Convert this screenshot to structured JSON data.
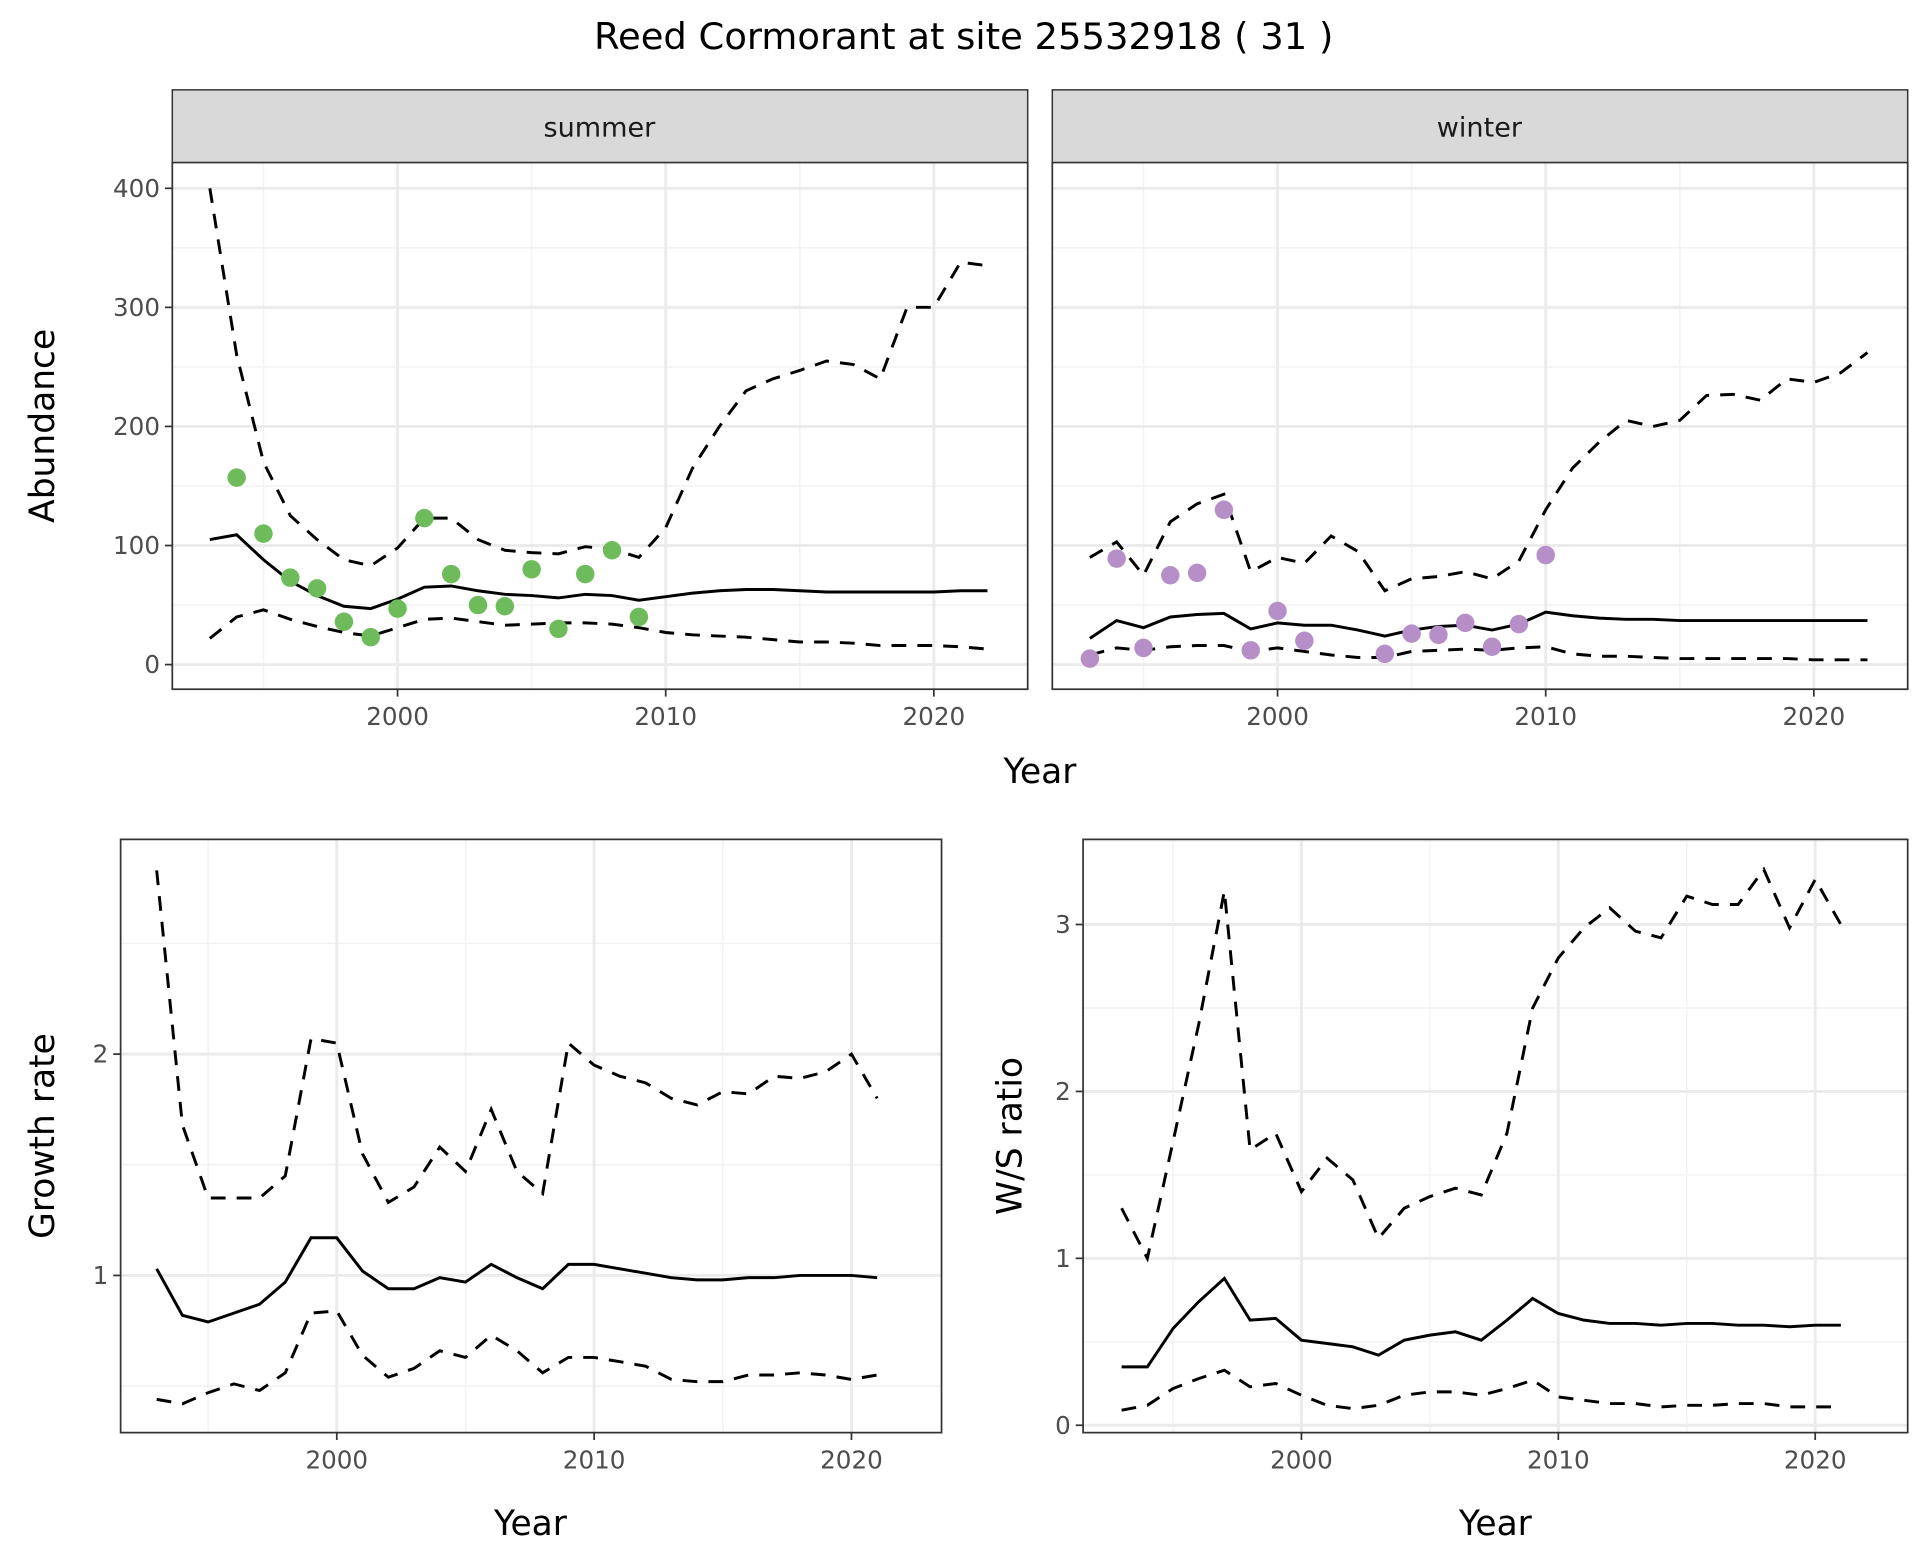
{
  "title": "Reed Cormorant at site 25532918 ( 31 )",
  "colors": {
    "summer": "#6dbb5a",
    "winter": "#b68fc8",
    "line": "#000000",
    "strip": "#d9d9d9",
    "grid": "#ebebeb"
  },
  "chart_data": [
    {
      "type": "line",
      "panel": "summer",
      "strip_label": "summer",
      "xlabel": "Year",
      "ylabel": "Abundance",
      "xlim": [
        1991.6,
        2023.5
      ],
      "ylim": [
        -20.7,
        421.7
      ],
      "xticks": [
        2000,
        2010,
        2020
      ],
      "yticks": [
        0,
        100,
        200,
        300,
        400
      ],
      "grid": true,
      "points": {
        "x": [
          1994,
          1995,
          1996,
          1997,
          1998,
          1999,
          2000,
          2001,
          2002,
          2003,
          2004,
          2005,
          2006,
          2007,
          2008,
          2009
        ],
        "y": [
          157,
          110,
          73,
          64,
          36,
          23,
          47,
          123,
          76,
          50,
          49,
          80,
          30,
          76,
          96,
          40
        ]
      },
      "years": [
        1993,
        1994,
        1995,
        1996,
        1997,
        1998,
        1999,
        2000,
        2001,
        2002,
        2003,
        2004,
        2005,
        2006,
        2007,
        2008,
        2009,
        2010,
        2011,
        2012,
        2013,
        2014,
        2015,
        2016,
        2017,
        2018,
        2019,
        2020,
        2021,
        2022
      ],
      "mean": [
        105,
        109,
        88,
        70,
        58,
        49,
        47,
        55,
        65,
        66,
        62,
        59,
        58,
        56,
        59,
        58,
        54,
        57,
        60,
        62,
        63,
        63,
        62,
        61,
        61,
        61,
        61,
        61,
        62,
        62
      ],
      "upper": [
        400,
        260,
        170,
        125,
        105,
        88,
        83,
        98,
        123,
        123,
        105,
        96,
        94,
        93,
        99,
        97,
        90,
        115,
        165,
        200,
        230,
        240,
        247,
        255,
        252,
        240,
        300,
        300,
        338,
        335
      ],
      "lower": [
        22,
        40,
        46,
        38,
        32,
        27,
        24,
        31,
        38,
        39,
        36,
        33,
        34,
        35,
        35,
        34,
        31,
        27,
        25,
        24,
        23,
        21,
        19,
        19,
        18,
        16,
        16,
        16,
        15,
        13
      ]
    },
    {
      "type": "line",
      "panel": "winter",
      "strip_label": "winter",
      "xlim": [
        1991.6,
        2023.5
      ],
      "ylim": [
        -20.7,
        421.7
      ],
      "xticks": [
        2000,
        2010,
        2020
      ],
      "yticks": [],
      "grid": true,
      "points": {
        "x": [
          1993,
          1994,
          1995,
          1996,
          1997,
          1998,
          1999,
          2000,
          2001,
          2004,
          2005,
          2006,
          2007,
          2008,
          2009,
          2010
        ],
        "y": [
          5,
          89,
          14,
          75,
          77,
          130,
          12,
          45,
          20,
          9,
          26,
          25,
          35,
          15,
          34,
          92
        ]
      },
      "years": [
        1993,
        1994,
        1995,
        1996,
        1997,
        1998,
        1999,
        2000,
        2001,
        2002,
        2003,
        2004,
        2005,
        2006,
        2007,
        2008,
        2009,
        2010,
        2011,
        2012,
        2013,
        2014,
        2015,
        2016,
        2017,
        2018,
        2019,
        2020,
        2021,
        2022
      ],
      "mean": [
        22,
        37,
        31,
        40,
        42,
        43,
        30,
        35,
        33,
        33,
        29,
        24,
        29,
        32,
        33,
        29,
        34,
        44,
        41,
        39,
        38,
        38,
        37,
        37,
        37,
        37,
        37,
        37,
        37,
        37
      ],
      "upper": [
        90,
        103,
        75,
        120,
        135,
        143,
        78,
        90,
        85,
        108,
        95,
        62,
        72,
        74,
        78,
        72,
        87,
        130,
        165,
        187,
        205,
        200,
        205,
        226,
        227,
        222,
        240,
        237,
        245,
        262
      ],
      "lower": [
        8,
        14,
        12,
        15,
        16,
        16,
        11,
        14,
        11,
        8,
        6,
        6,
        11,
        12,
        13,
        12,
        14,
        15,
        9,
        7,
        7,
        6,
        5,
        5,
        5,
        5,
        5,
        4,
        4,
        4
      ]
    },
    {
      "type": "line",
      "panel": "growth",
      "xlabel": "Year",
      "ylabel": "Growth rate",
      "xlim": [
        1991.6,
        2023.5
      ],
      "ylim": [
        0.29,
        2.97
      ],
      "xticks": [
        2000,
        2010,
        2020
      ],
      "yticks": [
        1,
        2
      ],
      "grid": true,
      "years": [
        1993,
        1994,
        1995,
        1996,
        1997,
        1998,
        1999,
        2000,
        2001,
        2002,
        2003,
        2004,
        2005,
        2006,
        2007,
        2008,
        2009,
        2010,
        2011,
        2012,
        2013,
        2014,
        2015,
        2016,
        2017,
        2018,
        2019,
        2020,
        2021
      ],
      "mean": [
        1.03,
        0.82,
        0.79,
        0.83,
        0.87,
        0.97,
        1.17,
        1.17,
        1.02,
        0.94,
        0.94,
        0.99,
        0.97,
        1.05,
        0.99,
        0.94,
        1.05,
        1.05,
        1.03,
        1.01,
        0.99,
        0.98,
        0.98,
        0.99,
        0.99,
        1.0,
        1.0,
        1.0,
        0.99
      ],
      "upper": [
        2.83,
        1.68,
        1.35,
        1.35,
        1.35,
        1.45,
        2.07,
        2.05,
        1.55,
        1.33,
        1.4,
        1.58,
        1.47,
        1.75,
        1.47,
        1.37,
        2.05,
        1.95,
        1.9,
        1.87,
        1.8,
        1.77,
        1.83,
        1.82,
        1.9,
        1.89,
        1.92,
        2.0,
        1.8
      ],
      "lower": [
        0.44,
        0.42,
        0.47,
        0.51,
        0.48,
        0.56,
        0.83,
        0.84,
        0.64,
        0.54,
        0.58,
        0.66,
        0.63,
        0.73,
        0.66,
        0.56,
        0.63,
        0.63,
        0.61,
        0.59,
        0.53,
        0.52,
        0.52,
        0.55,
        0.55,
        0.56,
        0.55,
        0.53,
        0.55
      ]
    },
    {
      "type": "line",
      "panel": "ratio",
      "xlabel": "Year",
      "ylabel": "W/S ratio",
      "xlim": [
        1991.5,
        2023.6
      ],
      "ylim": [
        -0.044,
        3.51
      ],
      "xticks": [
        2000,
        2010,
        2020
      ],
      "yticks": [
        0,
        1,
        2,
        3
      ],
      "grid": true,
      "years": [
        1993,
        1994,
        1995,
        1996,
        1997,
        1998,
        1999,
        2000,
        2001,
        2002,
        2003,
        2004,
        2005,
        2006,
        2007,
        2008,
        2009,
        2010,
        2011,
        2012,
        2013,
        2014,
        2015,
        2016,
        2017,
        2018,
        2019,
        2020,
        2021
      ],
      "mean": [
        0.35,
        0.35,
        0.58,
        0.74,
        0.88,
        0.63,
        0.64,
        0.51,
        0.49,
        0.47,
        0.42,
        0.51,
        0.54,
        0.56,
        0.51,
        0.63,
        0.76,
        0.67,
        0.63,
        0.61,
        0.61,
        0.6,
        0.61,
        0.61,
        0.6,
        0.6,
        0.59,
        0.6,
        0.6
      ],
      "upper": [
        1.3,
        1.0,
        1.7,
        2.4,
        3.2,
        1.65,
        1.75,
        1.4,
        1.6,
        1.47,
        1.12,
        1.3,
        1.37,
        1.42,
        1.38,
        1.75,
        2.5,
        2.8,
        2.98,
        3.1,
        2.96,
        2.92,
        3.17,
        3.12,
        3.12,
        3.33,
        2.98,
        3.27,
        3.0
      ],
      "lower": [
        0.09,
        0.12,
        0.22,
        0.28,
        0.33,
        0.23,
        0.25,
        0.18,
        0.12,
        0.1,
        0.12,
        0.18,
        0.2,
        0.2,
        0.18,
        0.22,
        0.27,
        0.17,
        0.15,
        0.13,
        0.13,
        0.11,
        0.12,
        0.12,
        0.13,
        0.13,
        0.11,
        0.11,
        0.11
      ]
    }
  ]
}
